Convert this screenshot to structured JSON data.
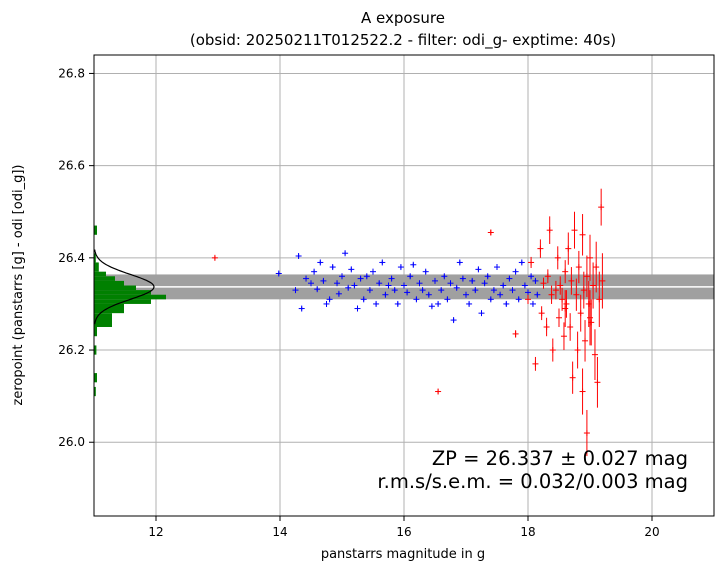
{
  "chart_data": {
    "type": "scatter",
    "title_line1": "A exposure",
    "title_line2": "(obsid: 20250211T012522.2 - filter: odi_g- exptime: 40s)",
    "xlabel": "panstarrs magnitude in g",
    "ylabel": "zeropoint (panstarrs [g] - odi [odi_g])",
    "xlim": [
      11,
      21
    ],
    "ylim": [
      25.84,
      26.84
    ],
    "x_ticks": [
      "12",
      "14",
      "16",
      "18",
      "20"
    ],
    "x_tick_values": [
      12,
      14,
      16,
      18,
      20
    ],
    "y_ticks": [
      "26.0",
      "26.2",
      "26.4",
      "26.6",
      "26.8"
    ],
    "y_tick_values": [
      26.0,
      26.2,
      26.4,
      26.6,
      26.8
    ],
    "grid": true,
    "zeropoint": 26.337,
    "zeropoint_band": [
      26.31,
      26.364
    ],
    "annotation_line1": "ZP = 26.337 ± 0.027 mag",
    "annotation_line2": "r.m.s/s.e.m. = 0.032/0.003 mag",
    "colors": {
      "used_stars": "#0000ff",
      "rejected_stars": "#ff0000",
      "histogram": "#008000",
      "band": "#a0a0a0",
      "gaussian": "#000000",
      "grid": "#b0b0b0"
    },
    "histogram": {
      "bins": [
        {
          "y0": 26.45,
          "y1": 26.47,
          "count": 0.05
        },
        {
          "y0": 26.39,
          "y1": 26.41,
          "count": 0.03
        },
        {
          "y0": 26.37,
          "y1": 26.39,
          "count": 0.08
        },
        {
          "y0": 26.36,
          "y1": 26.37,
          "count": 0.2
        },
        {
          "y0": 26.35,
          "y1": 26.36,
          "count": 0.35
        },
        {
          "y0": 26.34,
          "y1": 26.35,
          "count": 0.5
        },
        {
          "y0": 26.33,
          "y1": 26.34,
          "count": 0.7
        },
        {
          "y0": 26.32,
          "y1": 26.33,
          "count": 0.95
        },
        {
          "y0": 26.31,
          "y1": 26.32,
          "count": 1.2
        },
        {
          "y0": 26.3,
          "y1": 26.31,
          "count": 0.95
        },
        {
          "y0": 26.28,
          "y1": 26.3,
          "count": 0.5
        },
        {
          "y0": 26.25,
          "y1": 26.28,
          "count": 0.3
        },
        {
          "y0": 26.23,
          "y1": 26.25,
          "count": 0.05
        },
        {
          "y0": 26.19,
          "y1": 26.21,
          "count": 0.04
        },
        {
          "y0": 26.13,
          "y1": 26.15,
          "count": 0.05
        },
        {
          "y0": 26.1,
          "y1": 26.12,
          "count": 0.03
        }
      ],
      "gaussian_peak": 1.0,
      "gaussian_sigma": 0.027
    },
    "series": [
      {
        "name": "",
        "color": "#0000ff",
        "points": [
          [
            13.98,
            26.366,
            0.004
          ],
          [
            14.3,
            26.404,
            0.004
          ],
          [
            14.25,
            26.33,
            0.004
          ],
          [
            14.35,
            26.29,
            0.004
          ],
          [
            14.42,
            26.355,
            0.004
          ],
          [
            14.5,
            26.345,
            0.004
          ],
          [
            14.55,
            26.37,
            0.004
          ],
          [
            14.6,
            26.332,
            0.004
          ],
          [
            14.65,
            26.39,
            0.004
          ],
          [
            14.7,
            26.35,
            0.004
          ],
          [
            14.75,
            26.3,
            0.004
          ],
          [
            14.8,
            26.31,
            0.004
          ],
          [
            14.85,
            26.38,
            0.004
          ],
          [
            14.92,
            26.345,
            0.004
          ],
          [
            14.95,
            26.322,
            0.004
          ],
          [
            15.0,
            26.36,
            0.004
          ],
          [
            15.05,
            26.41,
            0.004
          ],
          [
            15.1,
            26.335,
            0.004
          ],
          [
            15.15,
            26.375,
            0.004
          ],
          [
            15.2,
            26.34,
            0.004
          ],
          [
            15.25,
            26.29,
            0.004
          ],
          [
            15.3,
            26.355,
            0.004
          ],
          [
            15.35,
            26.31,
            0.004
          ],
          [
            15.4,
            26.36,
            0.004
          ],
          [
            15.45,
            26.33,
            0.004
          ],
          [
            15.5,
            26.37,
            0.004
          ],
          [
            15.55,
            26.3,
            0.004
          ],
          [
            15.6,
            26.345,
            0.004
          ],
          [
            15.65,
            26.39,
            0.004
          ],
          [
            15.7,
            26.32,
            0.004
          ],
          [
            15.75,
            26.34,
            0.004
          ],
          [
            15.8,
            26.355,
            0.004
          ],
          [
            15.85,
            26.33,
            0.004
          ],
          [
            15.9,
            26.3,
            0.004
          ],
          [
            15.95,
            26.38,
            0.004
          ],
          [
            16.0,
            26.34,
            0.004
          ],
          [
            16.05,
            26.325,
            0.004
          ],
          [
            16.1,
            26.36,
            0.004
          ],
          [
            16.15,
            26.385,
            0.004
          ],
          [
            16.2,
            26.31,
            0.004
          ],
          [
            16.25,
            26.345,
            0.004
          ],
          [
            16.3,
            26.33,
            0.004
          ],
          [
            16.35,
            26.37,
            0.004
          ],
          [
            16.4,
            26.32,
            0.004
          ],
          [
            16.45,
            26.295,
            0.004
          ],
          [
            16.5,
            26.35,
            0.004
          ],
          [
            16.55,
            26.3,
            0.004
          ],
          [
            16.6,
            26.33,
            0.004
          ],
          [
            16.65,
            26.36,
            0.004
          ],
          [
            16.7,
            26.31,
            0.004
          ],
          [
            16.75,
            26.345,
            0.004
          ],
          [
            16.8,
            26.265,
            0.004
          ],
          [
            16.85,
            26.335,
            0.004
          ],
          [
            16.9,
            26.39,
            0.004
          ],
          [
            16.95,
            26.355,
            0.004
          ],
          [
            17.0,
            26.32,
            0.004
          ],
          [
            17.05,
            26.3,
            0.004
          ],
          [
            17.1,
            26.35,
            0.004
          ],
          [
            17.15,
            26.33,
            0.004
          ],
          [
            17.2,
            26.375,
            0.004
          ],
          [
            17.25,
            26.28,
            0.004
          ],
          [
            17.3,
            26.345,
            0.004
          ],
          [
            17.35,
            26.36,
            0.004
          ],
          [
            17.4,
            26.31,
            0.004
          ],
          [
            17.45,
            26.33,
            0.004
          ],
          [
            17.5,
            26.38,
            0.004
          ],
          [
            17.55,
            26.32,
            0.004
          ],
          [
            17.6,
            26.34,
            0.004
          ],
          [
            17.65,
            26.3,
            0.004
          ],
          [
            17.7,
            26.355,
            0.004
          ],
          [
            17.75,
            26.33,
            0.004
          ],
          [
            17.8,
            26.37,
            0.004
          ],
          [
            17.85,
            26.31,
            0.004
          ],
          [
            17.9,
            26.39,
            0.004
          ],
          [
            17.95,
            26.34,
            0.004
          ],
          [
            18.0,
            26.325,
            0.004
          ],
          [
            18.05,
            26.36,
            0.004
          ],
          [
            18.08,
            26.3,
            0.004
          ],
          [
            18.12,
            26.35,
            0.004
          ],
          [
            18.15,
            26.32,
            0.004
          ]
        ]
      },
      {
        "name": "",
        "color": "#ff0000",
        "points": [
          [
            12.95,
            26.4,
            0.004
          ],
          [
            16.55,
            26.11,
            0.005
          ],
          [
            17.4,
            26.455,
            0.006
          ],
          [
            17.8,
            26.235,
            0.008
          ],
          [
            18.0,
            26.31,
            0.01
          ],
          [
            18.05,
            26.39,
            0.012
          ],
          [
            18.12,
            26.17,
            0.015
          ],
          [
            18.2,
            26.42,
            0.02
          ],
          [
            18.22,
            26.28,
            0.015
          ],
          [
            18.25,
            26.345,
            0.012
          ],
          [
            18.3,
            26.25,
            0.02
          ],
          [
            18.32,
            26.36,
            0.015
          ],
          [
            18.35,
            26.46,
            0.03
          ],
          [
            18.38,
            26.32,
            0.02
          ],
          [
            18.4,
            26.2,
            0.025
          ],
          [
            18.45,
            26.33,
            0.02
          ],
          [
            18.48,
            26.4,
            0.025
          ],
          [
            18.5,
            26.27,
            0.02
          ],
          [
            18.52,
            26.34,
            0.02
          ],
          [
            18.55,
            26.31,
            0.025
          ],
          [
            18.58,
            26.23,
            0.03
          ],
          [
            18.6,
            26.37,
            0.025
          ],
          [
            18.62,
            26.3,
            0.03
          ],
          [
            18.65,
            26.42,
            0.035
          ],
          [
            18.68,
            26.25,
            0.03
          ],
          [
            18.7,
            26.35,
            0.03
          ],
          [
            18.72,
            26.14,
            0.035
          ],
          [
            18.75,
            26.46,
            0.04
          ],
          [
            18.78,
            26.32,
            0.035
          ],
          [
            18.8,
            26.2,
            0.04
          ],
          [
            18.82,
            26.38,
            0.035
          ],
          [
            18.85,
            26.28,
            0.04
          ],
          [
            18.88,
            26.45,
            0.045
          ],
          [
            18.9,
            26.33,
            0.04
          ],
          [
            18.92,
            26.22,
            0.045
          ],
          [
            18.95,
            26.36,
            0.045
          ],
          [
            18.98,
            26.3,
            0.05
          ],
          [
            19.0,
            26.4,
            0.05
          ],
          [
            19.02,
            26.26,
            0.05
          ],
          [
            19.05,
            26.34,
            0.05
          ],
          [
            19.08,
            26.19,
            0.055
          ],
          [
            19.1,
            26.38,
            0.055
          ],
          [
            19.12,
            26.13,
            0.055
          ],
          [
            19.15,
            26.31,
            0.06
          ],
          [
            19.18,
            26.51,
            0.04
          ],
          [
            19.2,
            26.35,
            0.06
          ],
          [
            18.95,
            26.02,
            0.05
          ],
          [
            19.0,
            26.27,
            0.06
          ],
          [
            18.88,
            26.11,
            0.05
          ],
          [
            18.6,
            26.29,
            0.04
          ]
        ]
      }
    ]
  }
}
